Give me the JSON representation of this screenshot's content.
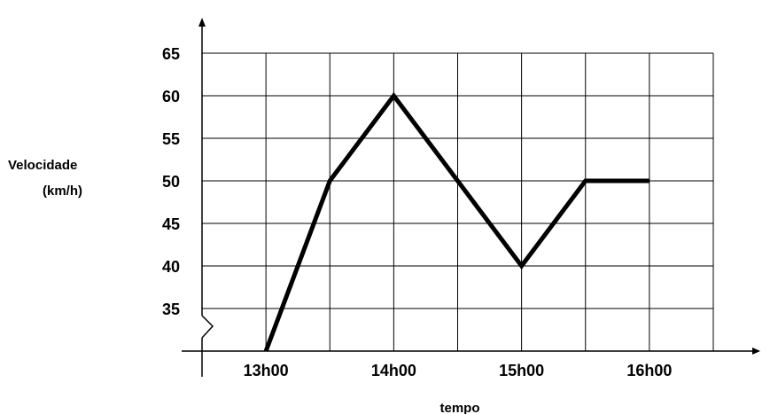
{
  "chart_data": {
    "type": "line",
    "title": "",
    "ylabel_line1": "Velocidade",
    "ylabel_line2": "(km/h)",
    "xlabel": "tempo",
    "x_tick_labels": [
      "13h00",
      "14h00",
      "15h00",
      "16h00"
    ],
    "y_tick_labels": [
      "35",
      "40",
      "45",
      "50",
      "55",
      "60",
      "65"
    ],
    "ylim": [
      30,
      65
    ],
    "xlim": [
      "12h30",
      "16h30"
    ],
    "y_axis_break": true,
    "grid": true,
    "series": [
      {
        "x": [
          "13h00",
          "13h30",
          "14h00",
          "14h30",
          "15h00",
          "15h30",
          "16h00"
        ],
        "y": [
          30,
          50,
          60,
          50,
          40,
          50,
          50
        ]
      }
    ],
    "colors": {
      "line": "#000000",
      "grid": "#000000"
    }
  }
}
